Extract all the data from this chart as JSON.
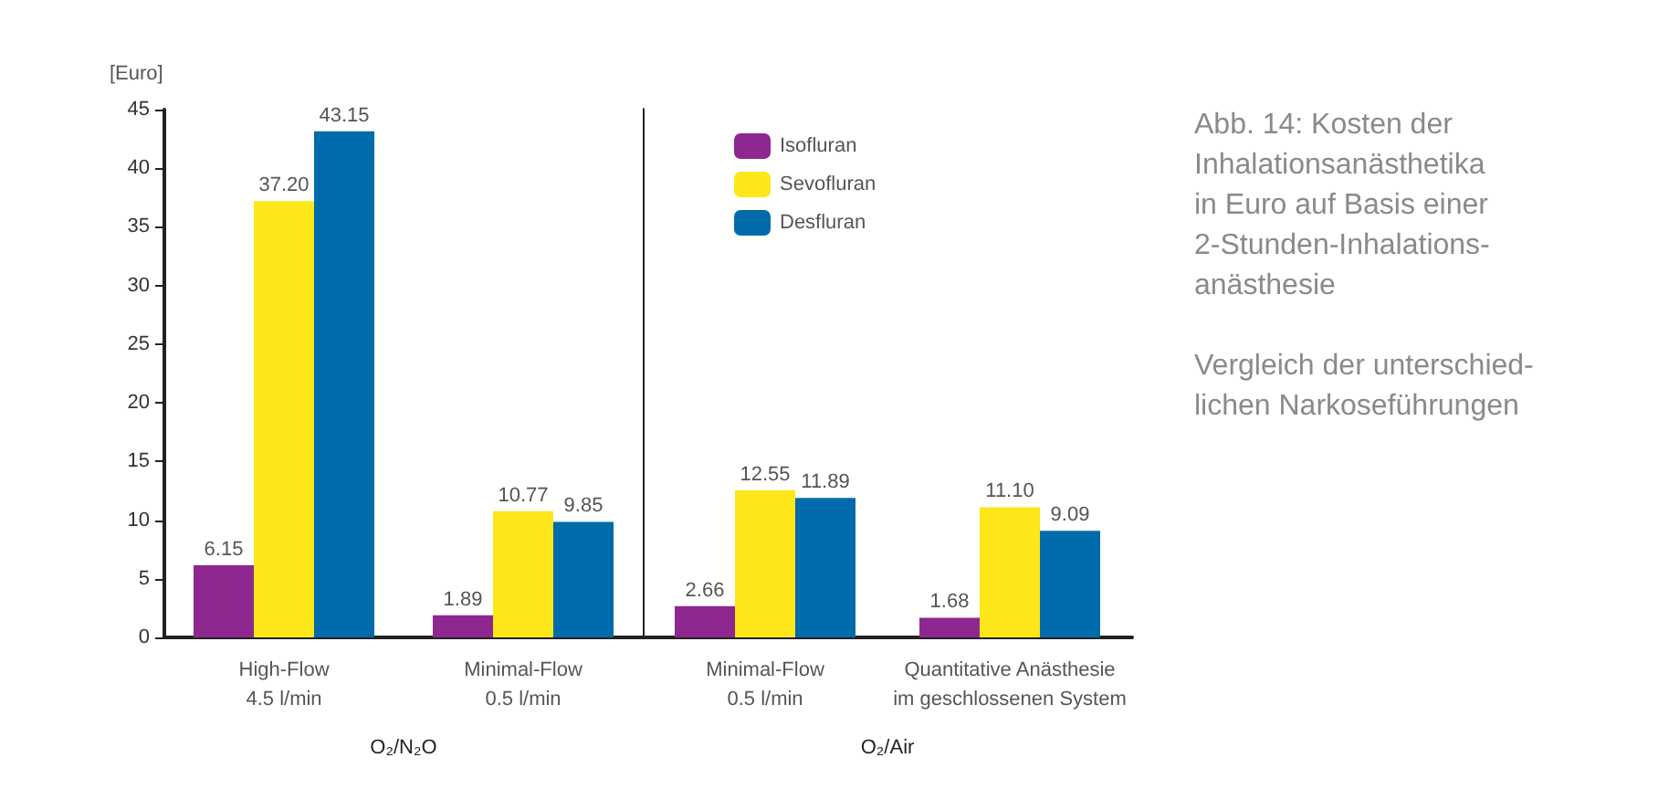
{
  "chart_data": [
    {
      "type": "bar",
      "ylabel": "[Euro]",
      "xlabel": "O₂/N₂O",
      "categories": [
        "High-Flow\n4.5 l/min",
        "Minimal-Flow\n0.5 l/min"
      ],
      "ylim": [
        0,
        45
      ],
      "yticks": [
        0,
        5,
        10,
        15,
        20,
        25,
        30,
        35,
        40,
        45
      ],
      "grid": false,
      "legend": false,
      "series": [
        {
          "color": "#8e278f",
          "values": [
            6.15,
            1.89
          ],
          "value_labels": [
            "6.15",
            "1.89"
          ]
        },
        {
          "color": "#fde619",
          "values": [
            37.2,
            10.77
          ],
          "value_labels": [
            "37.20",
            "10.77"
          ]
        },
        {
          "color": "#006bab",
          "values": [
            43.15,
            9.85
          ],
          "value_labels": [
            "43.15",
            "9.85"
          ]
        }
      ]
    },
    {
      "type": "bar",
      "xlabel": "O₂/Air",
      "categories": [
        "Minimal-Flow\n0.5 l/min",
        "Quantitative Anästhesie\nim geschlossenen System"
      ],
      "ylim": [
        0,
        45
      ],
      "yticks": [
        0,
        5,
        10,
        15,
        20,
        25,
        30,
        35,
        40,
        45
      ],
      "tick_labels": "x",
      "grid": false,
      "legend": "top left",
      "series": [
        {
          "name": "Isofluran",
          "color": "#8e278f",
          "values": [
            2.66,
            1.68
          ],
          "value_labels": [
            "2.66",
            "1.68"
          ]
        },
        {
          "name": "Sevofluran",
          "color": "#fde619",
          "values": [
            12.55,
            11.1
          ],
          "value_labels": [
            "12.55",
            "11.10"
          ]
        },
        {
          "name": "Desfluran",
          "color": "#006bab",
          "values": [
            11.89,
            9.09
          ],
          "value_labels": [
            "11.89",
            "9.09"
          ]
        }
      ]
    },
    {
      "type": "other",
      "annotations": [
        "Abb. 14: Kosten der\nInhalationsanästhetika\nin Euro auf Basis einer\n2-Stunden-Inhalations-\nanästhesie",
        "Vergleich der unterschied-\nlichen Narkoseführungen"
      ]
    }
  ]
}
